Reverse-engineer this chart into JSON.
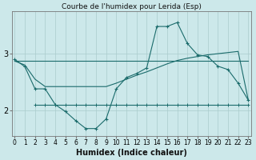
{
  "title": "Courbe de l'humidex pour Lerida (Esp)",
  "xlabel": "Humidex (Indice chaleur)",
  "bg_color": "#cce8ea",
  "line_color": "#1a6b6b",
  "grid_color": "#aacccc",
  "x_ticks": [
    0,
    1,
    2,
    3,
    4,
    5,
    6,
    7,
    8,
    9,
    10,
    11,
    12,
    13,
    14,
    15,
    16,
    17,
    18,
    19,
    20,
    21,
    22,
    23
  ],
  "y_ticks": [
    2,
    3
  ],
  "ylim": [
    1.55,
    3.75
  ],
  "xlim": [
    -0.3,
    23.3
  ],
  "line1_x": [
    0,
    1,
    2,
    3,
    4,
    5,
    6,
    7,
    8,
    9,
    10,
    11,
    12,
    13,
    14,
    15,
    16,
    17,
    18,
    19,
    20,
    21,
    22,
    23
  ],
  "line1_y": [
    2.9,
    2.77,
    2.38,
    2.38,
    2.1,
    1.98,
    1.82,
    1.68,
    1.68,
    1.85,
    2.38,
    2.58,
    2.65,
    2.75,
    3.48,
    3.48,
    3.55,
    3.18,
    2.98,
    2.95,
    2.78,
    2.72,
    2.48,
    2.18
  ],
  "line2_x": [
    0,
    23
  ],
  "line2_y": [
    2.87,
    2.87
  ],
  "line3_x": [
    0,
    1,
    2,
    3,
    4,
    5,
    6,
    7,
    8,
    9,
    10,
    11,
    12,
    13,
    14,
    15,
    16,
    17,
    18,
    19,
    20,
    21,
    22,
    23
  ],
  "line3_y": [
    2.87,
    2.8,
    2.55,
    2.42,
    2.42,
    2.42,
    2.42,
    2.42,
    2.42,
    2.42,
    2.48,
    2.55,
    2.62,
    2.68,
    2.75,
    2.82,
    2.88,
    2.92,
    2.95,
    2.98,
    3.0,
    3.02,
    3.04,
    2.18
  ],
  "line4_x": [
    2,
    3,
    4,
    5,
    6,
    7,
    8,
    9,
    10,
    11,
    12,
    13,
    14,
    15,
    16,
    17,
    18,
    19,
    20,
    21,
    22,
    23
  ],
  "line4_y": [
    2.1,
    2.1,
    2.1,
    2.1,
    2.1,
    2.1,
    2.1,
    2.1,
    2.1,
    2.1,
    2.1,
    2.1,
    2.1,
    2.1,
    2.1,
    2.1,
    2.1,
    2.1,
    2.1,
    2.1,
    2.1,
    2.1
  ],
  "title_fontsize": 6.5,
  "xlabel_fontsize": 7,
  "tick_fontsize": 5.5
}
